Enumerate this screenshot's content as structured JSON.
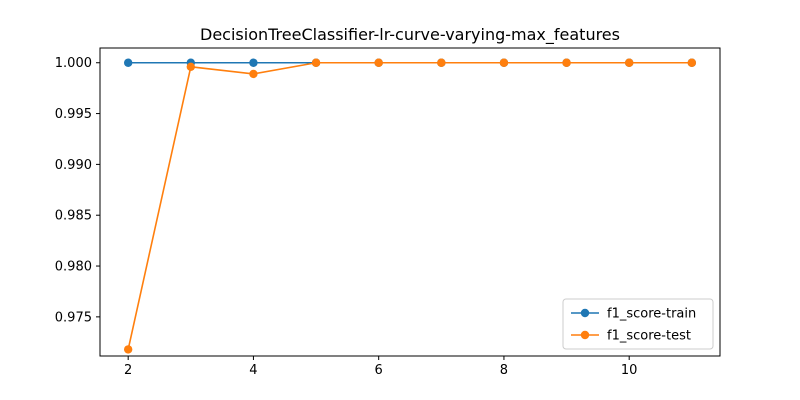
{
  "chart_data": {
    "type": "line",
    "title": "DecisionTreeClassifier-lr-curve-varying-max_features",
    "xlabel": "",
    "ylabel": "",
    "x": [
      2,
      3,
      4,
      5,
      6,
      7,
      8,
      9,
      10,
      11
    ],
    "xlim": [
      1.55,
      11.45
    ],
    "ylim": [
      0.97115,
      1.00145
    ],
    "xticks": [
      2,
      4,
      6,
      8,
      10
    ],
    "yticks": [
      0.975,
      0.98,
      0.985,
      0.99,
      0.995,
      1.0
    ],
    "ytick_labels": [
      "0.975",
      "0.980",
      "0.985",
      "0.990",
      "0.995",
      "1.000"
    ],
    "grid": false,
    "legend_position": "bottom-right",
    "series": [
      {
        "name": "f1_score-train",
        "color": "#1f77b4",
        "marker": "circle",
        "values": [
          1.0,
          1.0,
          1.0,
          1.0,
          1.0,
          1.0,
          1.0,
          1.0,
          1.0,
          1.0
        ]
      },
      {
        "name": "f1_score-test",
        "color": "#ff7f0e",
        "marker": "circle",
        "values": [
          0.9718,
          0.9996,
          0.9989,
          1.0,
          1.0,
          1.0,
          1.0,
          1.0,
          1.0,
          1.0
        ]
      }
    ]
  }
}
